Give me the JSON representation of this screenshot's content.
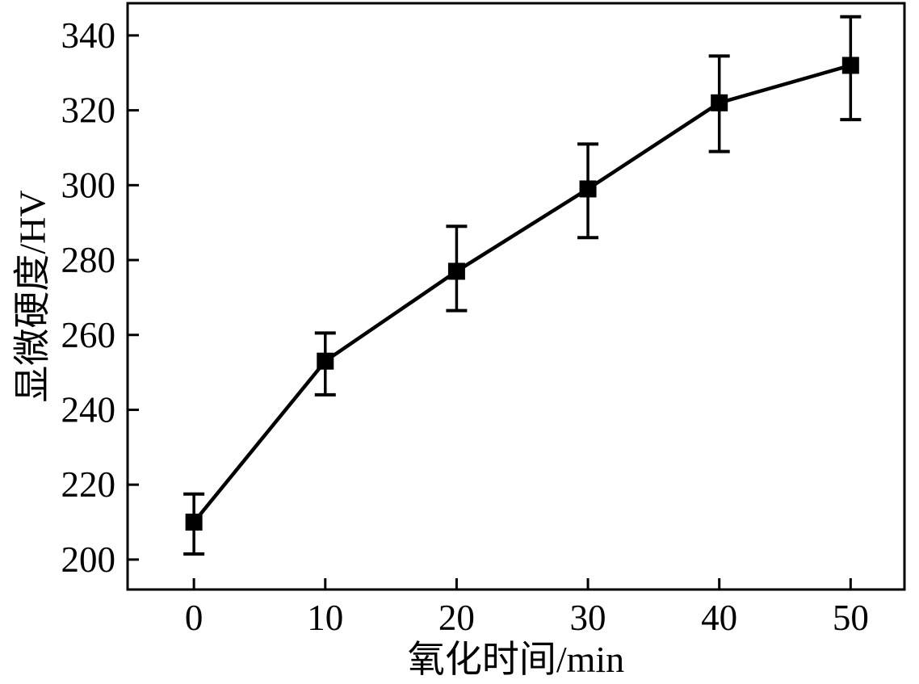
{
  "chart_data": {
    "type": "line",
    "title": "",
    "xlabel": "氧化时间/min",
    "ylabel": "显微硬度/HV",
    "x": [
      0,
      10,
      20,
      30,
      40,
      50
    ],
    "x_ticks": [
      0,
      10,
      20,
      30,
      40,
      50
    ],
    "y_ticks": [
      200,
      220,
      240,
      260,
      280,
      300,
      320,
      340
    ],
    "xlim": [
      -5.05,
      54.1
    ],
    "ylim": [
      192,
      348.6
    ],
    "series": [
      {
        "name": "microhardness",
        "values": [
          210,
          253,
          277,
          299,
          322,
          332
        ],
        "error_low": [
          201.5,
          244,
          266.5,
          286,
          309,
          317.5
        ],
        "error_high": [
          217.5,
          260.5,
          289,
          311,
          334.5,
          345
        ]
      }
    ],
    "grid": false,
    "legend": "none",
    "marker": "filled-square",
    "line_color": "#000000",
    "marker_color": "#000000",
    "frame_color": "#000000",
    "background_color": "#ffffff",
    "tick_direction": "in",
    "frame": "full-box"
  }
}
